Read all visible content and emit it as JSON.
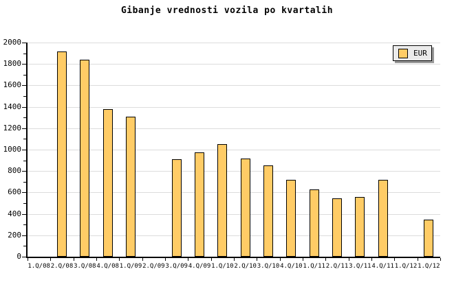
{
  "title": "Gibanje vrednosti vozila po kvartalih",
  "legend": {
    "label": "EUR"
  },
  "colors": {
    "background": "#FFFFFF",
    "bar_fill": "#FFCC66",
    "bar_border": "#000000",
    "grid": "#DCDCDC",
    "axis": "#000000",
    "legend_bg": "#EBEBEB",
    "legend_shadow": "#999999",
    "text": "#000000"
  },
  "chart_data": {
    "type": "bar",
    "title": "Gibanje vrednosti vozila po kvartalih",
    "xlabel": "",
    "ylabel": "",
    "categories": [
      "1.Q/08",
      "2.Q/08",
      "3.Q/08",
      "4.Q/08",
      "1.Q/09",
      "2.Q/09",
      "3.Q/09",
      "4.Q/09",
      "1.Q/10",
      "2.Q/10",
      "3.Q/10",
      "4.Q/10",
      "1.Q/11",
      "2.Q/11",
      "3.Q/11",
      "4.Q/11",
      "1.Q/12",
      "1.Q/12"
    ],
    "series": [
      {
        "name": "EUR",
        "values": [
          null,
          1915,
          1840,
          1380,
          1305,
          null,
          910,
          975,
          1050,
          915,
          855,
          715,
          630,
          545,
          555,
          715,
          null,
          345
        ]
      }
    ],
    "ylim": [
      0,
      2000
    ],
    "ytick_step": 200,
    "yminor_step": 100,
    "grid": "horizontal-major",
    "legend_position": "top-right"
  }
}
